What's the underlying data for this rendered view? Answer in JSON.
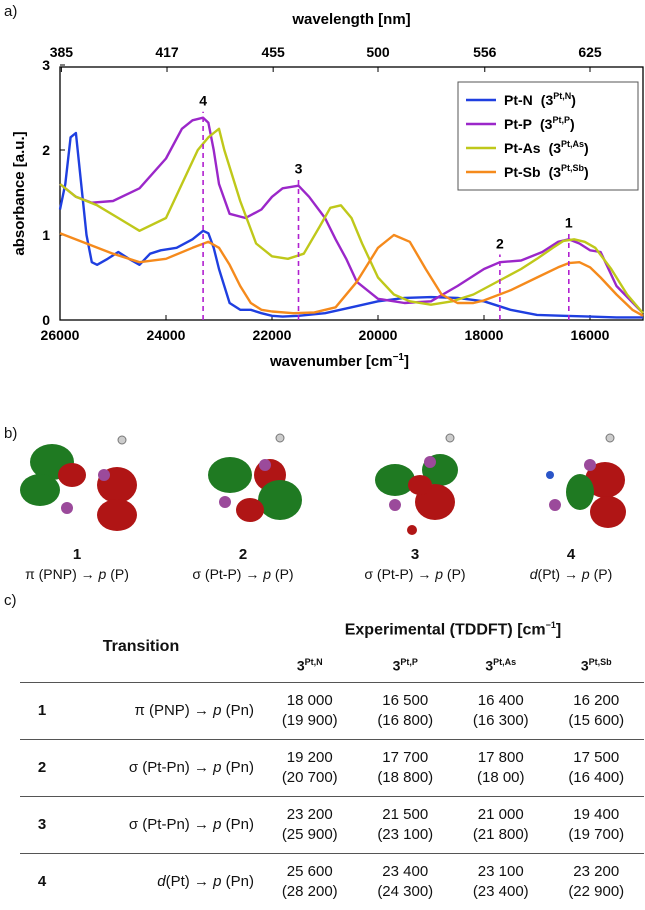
{
  "panels": {
    "a": "a)",
    "b": "b)",
    "c": "c)"
  },
  "chart_data": {
    "type": "line",
    "top_xlabel": "wavelength [nm]",
    "top_ticks": [
      "385",
      "417",
      "455",
      "500",
      "556",
      "625"
    ],
    "xlabel": "wavenumber [cm",
    "xlabel_sup": "−1",
    "xlabel_end": "]",
    "ylabel": "absorbance [a.u.]",
    "xlim": [
      26000,
      15000
    ],
    "ylim": [
      0,
      3
    ],
    "x_ticks": [
      "26000",
      "24000",
      "22000",
      "20000",
      "18000",
      "16000"
    ],
    "y_ticks": [
      "0",
      "1",
      "2",
      "3"
    ],
    "series": [
      {
        "name": "Pt-N",
        "label_sup": "Pt,N",
        "color": "#1f3fe0",
        "x": [
          26000,
          25900,
          25800,
          25700,
          25600,
          25500,
          25400,
          25300,
          25100,
          24900,
          24700,
          24500,
          24300,
          24100,
          23800,
          23500,
          23300,
          23200,
          23100,
          23000,
          22900,
          22800,
          22600,
          22400,
          22200,
          22000,
          21800,
          21500,
          21000,
          20500,
          20000,
          19500,
          19000,
          18500,
          18000,
          17500,
          17000,
          16500,
          16000,
          15500,
          15000
        ],
        "y": [
          1.3,
          1.6,
          2.15,
          2.2,
          1.6,
          1.0,
          0.68,
          0.65,
          0.72,
          0.8,
          0.72,
          0.65,
          0.78,
          0.82,
          0.85,
          0.95,
          1.05,
          1.02,
          0.85,
          0.6,
          0.4,
          0.2,
          0.12,
          0.12,
          0.08,
          0.05,
          0.04,
          0.05,
          0.08,
          0.15,
          0.22,
          0.26,
          0.27,
          0.26,
          0.22,
          0.12,
          0.06,
          0.05,
          0.04,
          0.03,
          0.03
        ]
      },
      {
        "name": "Pt-P",
        "label_sup": "Pt,P",
        "color": "#9b27c9",
        "x": [
          26000,
          25700,
          25400,
          25000,
          24500,
          24000,
          23700,
          23500,
          23300,
          23200,
          23100,
          23000,
          22800,
          22500,
          22200,
          22000,
          21800,
          21500,
          21300,
          21000,
          20800,
          20600,
          20400,
          20000,
          19500,
          19000,
          18500,
          18000,
          17700,
          17300,
          16900,
          16600,
          16400,
          16200,
          16000,
          15800,
          15500,
          15000
        ],
        "y": [
          1.6,
          1.45,
          1.38,
          1.4,
          1.55,
          1.9,
          2.25,
          2.35,
          2.38,
          2.32,
          2.0,
          1.6,
          1.25,
          1.2,
          1.3,
          1.45,
          1.55,
          1.58,
          1.45,
          1.2,
          0.95,
          0.72,
          0.45,
          0.25,
          0.2,
          0.22,
          0.4,
          0.6,
          0.68,
          0.7,
          0.8,
          0.92,
          0.95,
          0.9,
          0.82,
          0.8,
          0.4,
          0.08
        ]
      },
      {
        "name": "Pt-As",
        "label_sup": "Pt,As",
        "color": "#bfc81a",
        "x": [
          26000,
          25700,
          25300,
          24900,
          24500,
          24000,
          23700,
          23400,
          23200,
          23100,
          23000,
          22900,
          22600,
          22300,
          22000,
          21700,
          21400,
          21100,
          20900,
          20700,
          20500,
          20300,
          20000,
          19700,
          19400,
          19000,
          18600,
          18200,
          17900,
          17600,
          17300,
          17000,
          16700,
          16500,
          16300,
          16100,
          15900,
          15600,
          15300,
          15000
        ],
        "y": [
          1.6,
          1.45,
          1.35,
          1.2,
          1.05,
          1.2,
          1.6,
          2.0,
          2.15,
          2.2,
          2.25,
          2.0,
          1.4,
          0.9,
          0.75,
          0.72,
          0.78,
          1.1,
          1.32,
          1.35,
          1.2,
          0.9,
          0.5,
          0.3,
          0.22,
          0.18,
          0.22,
          0.3,
          0.4,
          0.5,
          0.6,
          0.72,
          0.85,
          0.93,
          0.95,
          0.92,
          0.85,
          0.6,
          0.3,
          0.08
        ]
      },
      {
        "name": "Pt-Sb",
        "label_sup": "Pt,Sb",
        "color": "#f58a1c",
        "x": [
          26000,
          25500,
          25000,
          24500,
          24000,
          23500,
          23200,
          23000,
          22800,
          22600,
          22400,
          22200,
          22000,
          21600,
          21200,
          20800,
          20400,
          20000,
          19700,
          19400,
          19100,
          18800,
          18500,
          18200,
          18000,
          17500,
          17000,
          16600,
          16400,
          16200,
          16000,
          15800,
          15500,
          15200,
          15000
        ],
        "y": [
          1.02,
          0.9,
          0.78,
          0.68,
          0.72,
          0.85,
          0.92,
          0.85,
          0.65,
          0.4,
          0.2,
          0.12,
          0.1,
          0.08,
          0.09,
          0.15,
          0.45,
          0.85,
          1.0,
          0.92,
          0.6,
          0.3,
          0.2,
          0.2,
          0.23,
          0.35,
          0.5,
          0.62,
          0.67,
          0.68,
          0.62,
          0.5,
          0.3,
          0.12,
          0.05
        ]
      }
    ],
    "markers": [
      {
        "label": "1",
        "x": 16400,
        "top": 0.95
      },
      {
        "label": "2",
        "x": 17700,
        "top": 0.7
      },
      {
        "label": "3",
        "x": 21500,
        "top": 1.58
      },
      {
        "label": "4",
        "x": 23300,
        "top": 2.38
      }
    ]
  },
  "orbitals": [
    {
      "num": "1",
      "pre": "π (PNP) → ",
      "p": "p",
      "post": " (P)"
    },
    {
      "num": "2",
      "pre": "σ (Pt-P) → ",
      "p": "p",
      "post": " (P)"
    },
    {
      "num": "3",
      "pre": "σ (Pt-P) → ",
      "p": "p",
      "post": " (P)"
    },
    {
      "num": "4",
      "pre": "(Pt) → ",
      "d": "d",
      "p": "p",
      "post": " (P)"
    }
  ],
  "table": {
    "col_transition": "Transition",
    "col_experimental": "Experimental (TDDFT) [cm",
    "col_experimental_sup": "−1",
    "col_experimental_end": "]",
    "compound_base": "3",
    "compounds": [
      "Pt,N",
      "Pt,P",
      "Pt,As",
      "Pt,Sb"
    ],
    "rows": [
      {
        "num": "1",
        "pre": "π (PNP) → ",
        "p": "p",
        "post": " (Pn)",
        "vals": [
          [
            "18 000",
            "(19 900)"
          ],
          [
            "16 500",
            "(16 800)"
          ],
          [
            "16 400",
            "(16 300)"
          ],
          [
            "16 200",
            "(15 600)"
          ]
        ]
      },
      {
        "num": "2",
        "pre": "σ (Pt-Pn) → ",
        "p": "p",
        "post": " (Pn)",
        "vals": [
          [
            "19 200",
            "(20 700)"
          ],
          [
            "17 700",
            "(18 800)"
          ],
          [
            "17 800",
            "(18 00)"
          ],
          [
            "17 500",
            "(16 400)"
          ]
        ]
      },
      {
        "num": "3",
        "pre": "σ (Pt-Pn) → ",
        "p": "p",
        "post": " (Pn)",
        "vals": [
          [
            "23 200",
            "(25 900)"
          ],
          [
            "21 500",
            "(23 100)"
          ],
          [
            "21 000",
            "(21 800)"
          ],
          [
            "19 400",
            "(19 700)"
          ]
        ]
      },
      {
        "num": "4",
        "d": "d",
        "pre": "(Pt) → ",
        "p": "p",
        "post": " (Pn)",
        "vals": [
          [
            "25 600",
            "(28 200)"
          ],
          [
            "23 400",
            "(24 300)"
          ],
          [
            "23 100",
            "(23 400)"
          ],
          [
            "23 200",
            "(22 900)"
          ]
        ]
      }
    ]
  },
  "colors": {
    "marker": "#b020d0",
    "orbital_green": "#1f7a22",
    "orbital_red": "#b01515"
  }
}
